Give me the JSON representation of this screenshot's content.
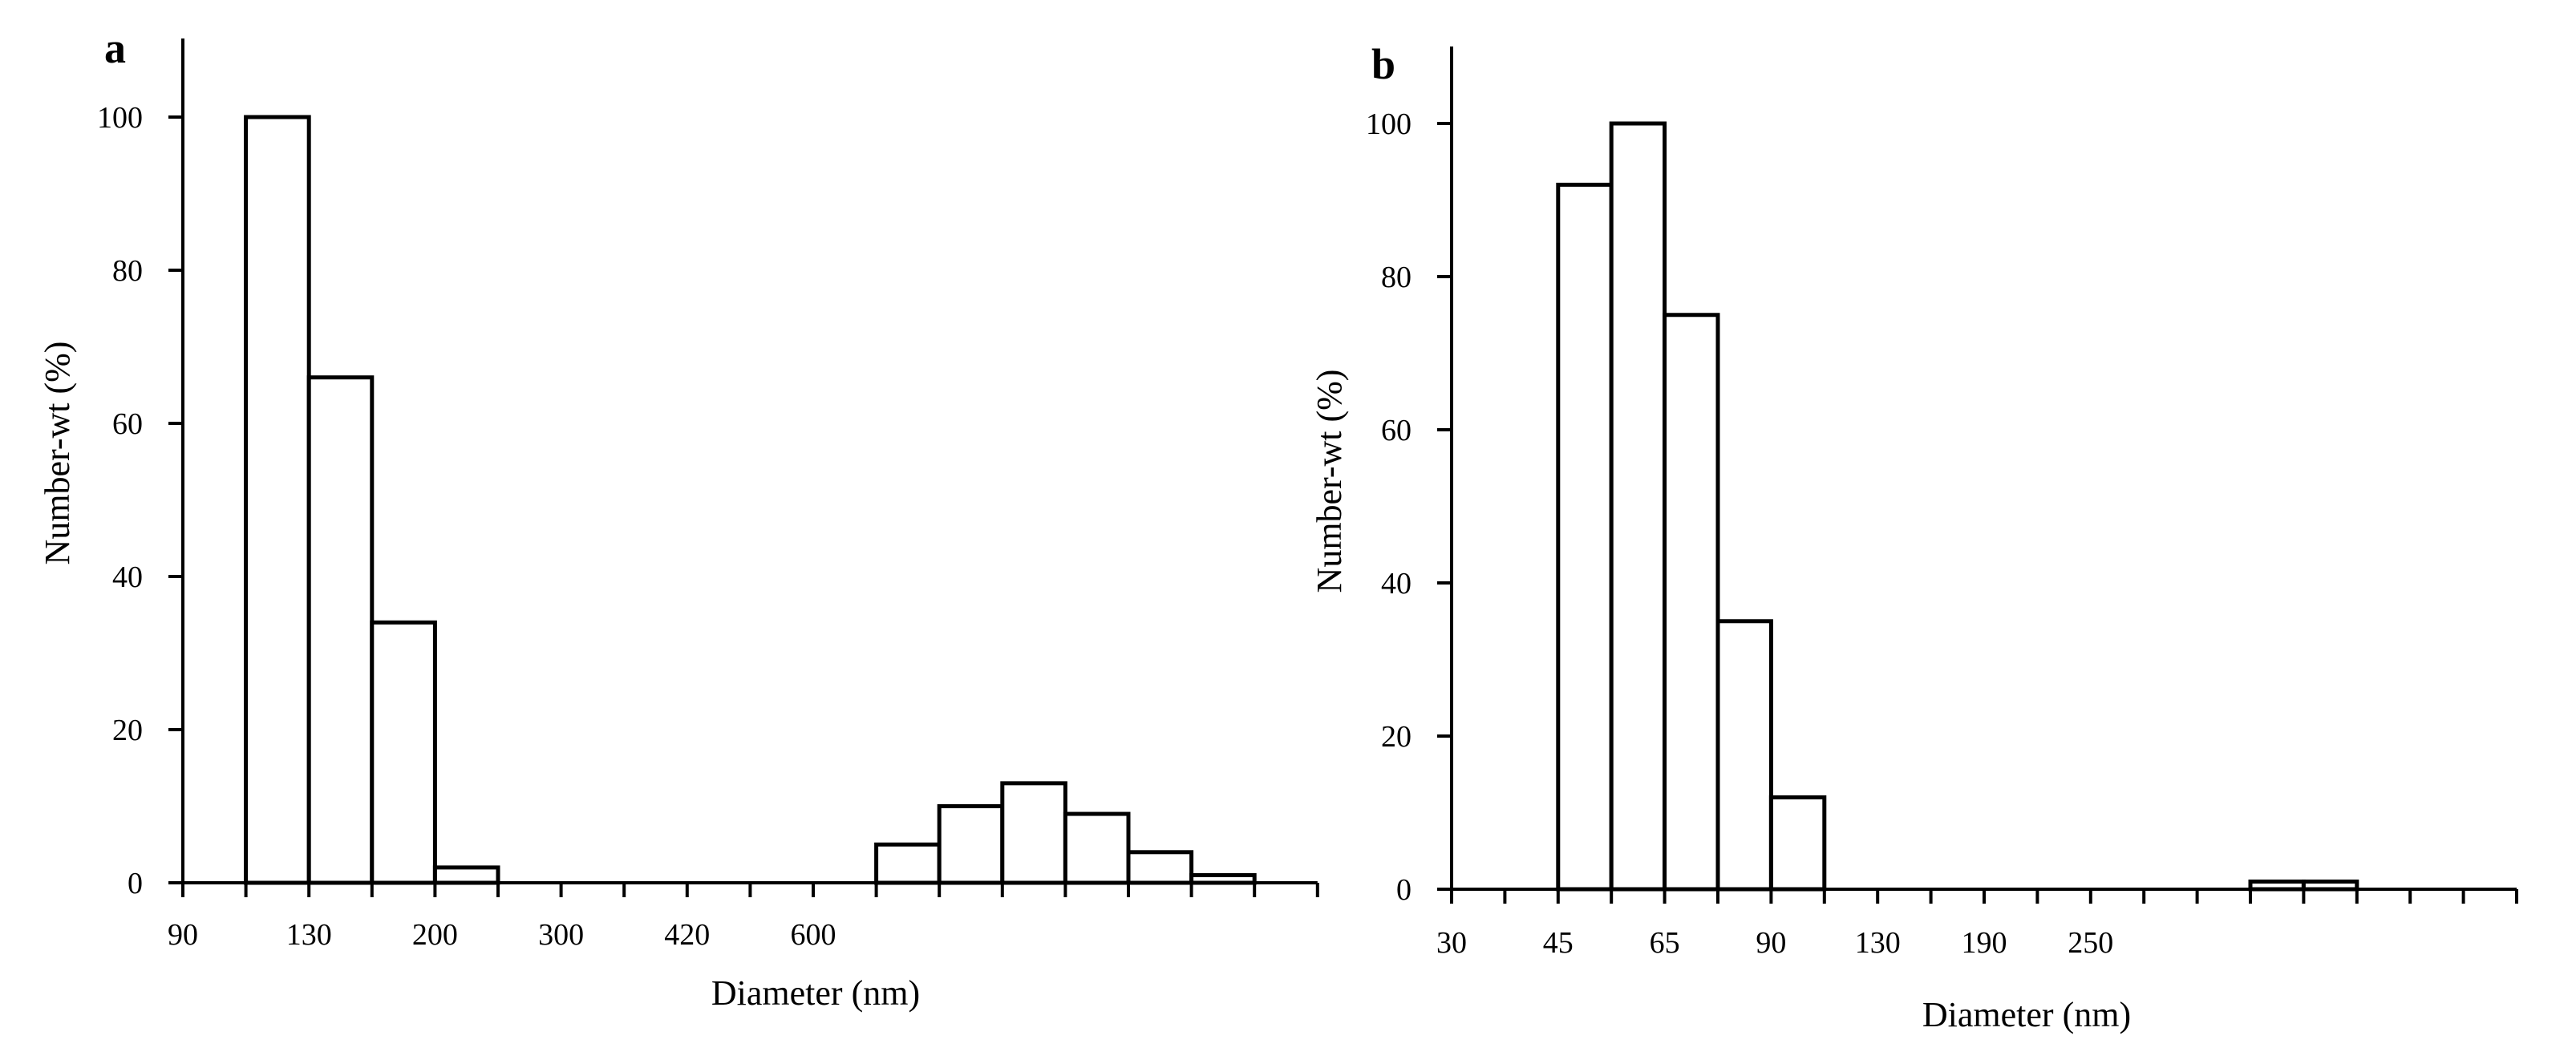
{
  "chart_data": [
    {
      "panel": "a",
      "type": "bar",
      "title": "",
      "xlabel": "Diameter (nm)",
      "ylabel": "Number-wt (%)",
      "ylim": [
        0,
        110
      ],
      "y_ticks": [
        "0",
        "20",
        "40",
        "60",
        "80",
        "100"
      ],
      "x_tick_labels": [
        "90",
        "130",
        "200",
        "300",
        "420",
        "600"
      ],
      "bins": 18,
      "values": [
        0,
        100,
        66,
        34,
        2,
        0,
        0,
        0,
        0,
        0,
        0,
        5,
        10,
        13,
        9,
        4,
        1,
        0
      ]
    },
    {
      "panel": "b",
      "type": "bar",
      "title": "",
      "xlabel": "Diameter (nm)",
      "ylabel": "Number-wt (%)",
      "ylim": [
        0,
        110
      ],
      "y_ticks": [
        "0",
        "20",
        "40",
        "60",
        "80",
        "100"
      ],
      "x_tick_labels": [
        "30",
        "45",
        "65",
        "90",
        "130",
        "190",
        "250"
      ],
      "bins": 20,
      "values": [
        0,
        0,
        92,
        100,
        75,
        35,
        12,
        0,
        0,
        0,
        0,
        0,
        0,
        0,
        0,
        1,
        1,
        0,
        0,
        0
      ]
    }
  ]
}
